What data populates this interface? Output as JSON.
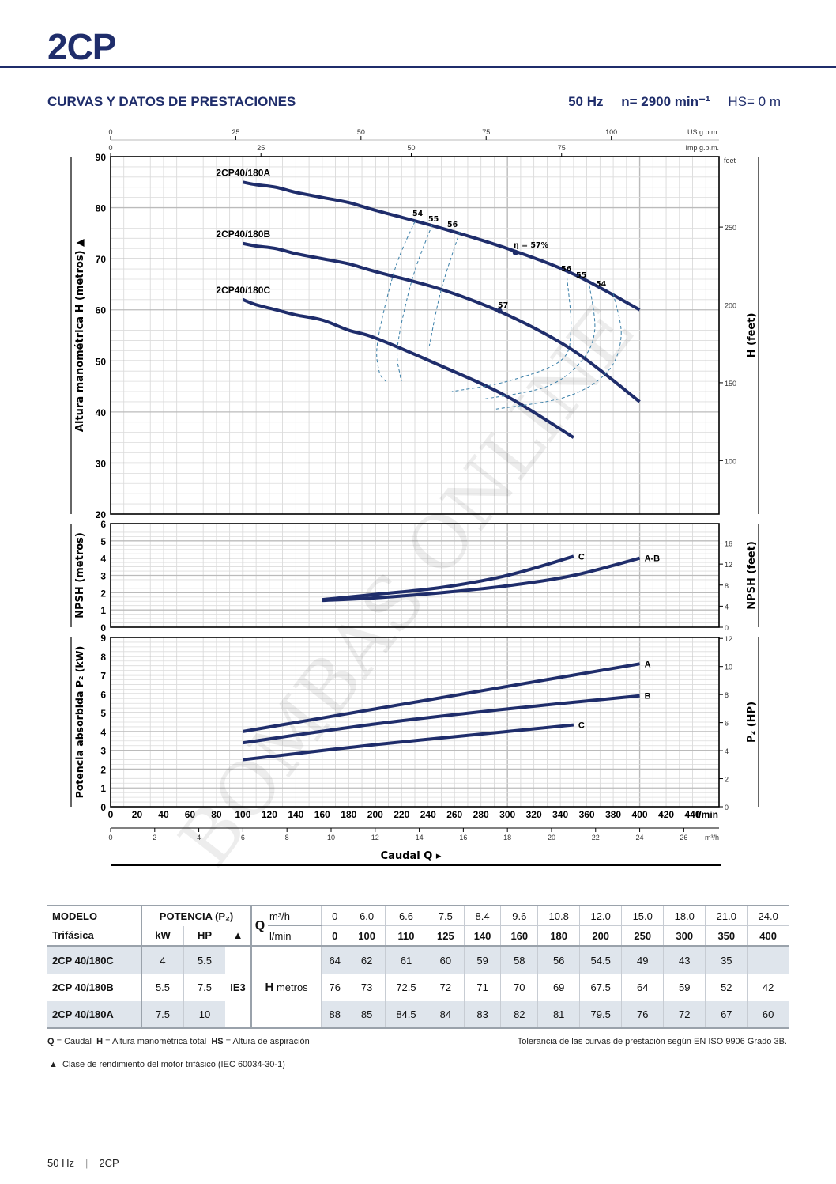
{
  "header": {
    "brand": "2CP",
    "section_title": "CURVAS Y DATOS DE PRESTACIONES",
    "frequency": "50 Hz",
    "speed": "n= 2900 min⁻¹",
    "hs": "HS= 0 m"
  },
  "watermark": "BOMBAS ONLINE",
  "colors": {
    "brand": "#1f2d6b",
    "curve": "#1f2d6b",
    "efficiency": "#3a7fa8",
    "row_shade": "#dfe5ec"
  },
  "chart_data": [
    {
      "type": "line",
      "title": "Altura manométrica",
      "ylabel": "Altura manométrica H (metros)",
      "ylabel_right": "H (feet)",
      "xlim": [
        0,
        460
      ],
      "ylim": [
        20,
        90
      ],
      "y_ticks": [
        "20",
        "30",
        "40",
        "50",
        "60",
        "70",
        "80",
        "90"
      ],
      "y_right_ticks": [
        "100",
        "150",
        "200",
        "250"
      ],
      "y_right_unit": "feet",
      "top_axis_us": {
        "unit": "US g.p.m.",
        "ticks": [
          "0",
          "25",
          "50",
          "75",
          "100"
        ]
      },
      "top_axis_imp": {
        "unit": "Imp g.p.m.",
        "ticks": [
          "0",
          "25",
          "50",
          "75"
        ]
      },
      "series": [
        {
          "name": "2CP40/180A",
          "x": [
            100,
            110,
            125,
            140,
            160,
            180,
            200,
            250,
            300,
            350,
            400
          ],
          "y": [
            85,
            84.5,
            84,
            83,
            82,
            81,
            79.5,
            76,
            72,
            67,
            60
          ]
        },
        {
          "name": "2CP40/180B",
          "x": [
            100,
            110,
            125,
            140,
            160,
            180,
            200,
            250,
            300,
            350,
            400
          ],
          "y": [
            73,
            72.5,
            72,
            71,
            70,
            69,
            67.5,
            64,
            59,
            52,
            42
          ]
        },
        {
          "name": "2CP40/180C",
          "x": [
            100,
            110,
            125,
            140,
            160,
            180,
            200,
            250,
            300,
            350
          ],
          "y": [
            62,
            61,
            60,
            59,
            58,
            56,
            54.5,
            49,
            43,
            35
          ]
        }
      ],
      "efficiency_labels": [
        "54",
        "55",
        "56",
        "η = 57%",
        "57",
        "56",
        "55",
        "54"
      ],
      "efficiency_contours": [
        {
          "label": "54",
          "points": [
            [
              230,
              77.3
            ],
            [
              215,
              68
            ],
            [
              202,
              54
            ],
            [
              203,
              48
            ],
            [
              208,
              46
            ]
          ]
        },
        {
          "label": "55",
          "points": [
            [
              243,
              76.6
            ],
            [
              228,
              66
            ],
            [
              217,
              53
            ],
            [
              219,
              47
            ],
            [
              220,
              46
            ]
          ]
        },
        {
          "label": "56",
          "points": [
            [
              264,
              75.3
            ],
            [
              250,
              64
            ],
            [
              241,
              53
            ]
          ]
        },
        {
          "label": "56",
          "points": [
            [
              345,
              66.4
            ],
            [
              348,
              56
            ],
            [
              340,
              50
            ],
            [
              300,
              46
            ],
            [
              258,
              44
            ]
          ]
        },
        {
          "label": "55",
          "points": [
            [
              362,
              64.8
            ],
            [
              366,
              56
            ],
            [
              356,
              50
            ],
            [
              330,
              45
            ],
            [
              282,
              42.5
            ]
          ]
        },
        {
          "label": "54",
          "points": [
            [
              380,
              63.2
            ],
            [
              386,
              55
            ],
            [
              376,
              48
            ],
            [
              345,
              43
            ],
            [
              290,
              40.5
            ]
          ]
        }
      ],
      "efficiency_points": [
        {
          "series": "2CP40/180A",
          "x": 306,
          "y": 71.2
        },
        {
          "series": "2CP40/180B",
          "x": 294,
          "y": 59.8
        }
      ]
    },
    {
      "type": "line",
      "title": "NPSH",
      "ylabel": "NPSH (metros)",
      "ylabel_right": "NPSH (feet)",
      "xlim": [
        0,
        460
      ],
      "ylim": [
        0,
        6
      ],
      "y_ticks": [
        "0",
        "1",
        "2",
        "3",
        "4",
        "5",
        "6"
      ],
      "y_right_ticks": [
        "0",
        "4",
        "8",
        "12",
        "16"
      ],
      "series": [
        {
          "name": "C",
          "x": [
            160,
            200,
            250,
            300,
            350
          ],
          "y": [
            1.6,
            1.9,
            2.3,
            3.0,
            4.1
          ]
        },
        {
          "name": "A-B",
          "x": [
            160,
            200,
            250,
            300,
            350,
            400
          ],
          "y": [
            1.55,
            1.7,
            2.0,
            2.4,
            3.0,
            4.0
          ]
        }
      ]
    },
    {
      "type": "line",
      "title": "Potencia absorbida",
      "ylabel": "Potencia absorbida P₂ (kW)",
      "ylabel_right": "P₂ (HP)",
      "xlim": [
        0,
        460
      ],
      "ylim": [
        0,
        9
      ],
      "y_ticks": [
        "0",
        "1",
        "2",
        "3",
        "4",
        "5",
        "6",
        "7",
        "8",
        "9"
      ],
      "y_right_ticks": [
        "0",
        "2",
        "4",
        "6",
        "8",
        "10",
        "12"
      ],
      "xlabel": "Caudal Q",
      "x_ticks": [
        "0",
        "20",
        "40",
        "60",
        "80",
        "100",
        "120",
        "140",
        "160",
        "180",
        "200",
        "220",
        "240",
        "260",
        "280",
        "300",
        "320",
        "340",
        "360",
        "380",
        "400",
        "420",
        "440"
      ],
      "x_unit": "l/min",
      "x2_ticks": [
        "0",
        "2",
        "4",
        "6",
        "8",
        "10",
        "12",
        "14",
        "16",
        "18",
        "20",
        "22",
        "24",
        "26"
      ],
      "x2_unit": "m³/h",
      "series": [
        {
          "name": "A",
          "x": [
            100,
            200,
            300,
            400
          ],
          "y": [
            4.0,
            5.2,
            6.4,
            7.6
          ]
        },
        {
          "name": "B",
          "x": [
            100,
            200,
            300,
            400
          ],
          "y": [
            3.4,
            4.4,
            5.2,
            5.9
          ]
        },
        {
          "name": "C",
          "x": [
            100,
            200,
            300,
            350
          ],
          "y": [
            2.5,
            3.3,
            4.0,
            4.35
          ]
        }
      ]
    }
  ],
  "table": {
    "h_modelo": "MODELO",
    "h_trifasica": "Trifásica",
    "h_potencia": "POTENCIA (P₂)",
    "h_kw": "kW",
    "h_hp": "HP",
    "h_class_icon": "▲",
    "h_q": "Q",
    "h_m3h": "m³/h",
    "h_lmin": "l/min",
    "m3h": [
      "0",
      "6.0",
      "6.6",
      "7.5",
      "8.4",
      "9.6",
      "10.8",
      "12.0",
      "15.0",
      "18.0",
      "21.0",
      "24.0"
    ],
    "lmin": [
      "0",
      "100",
      "110",
      "125",
      "140",
      "160",
      "180",
      "200",
      "250",
      "300",
      "350",
      "400"
    ],
    "ie_class": "IE3",
    "h_label": "H",
    "h_unit": "metros",
    "rows": [
      {
        "model": "2CP 40/180C",
        "kw": "4",
        "hp": "5.5",
        "h": [
          "64",
          "62",
          "61",
          "60",
          "59",
          "58",
          "56",
          "54.5",
          "49",
          "43",
          "35",
          ""
        ]
      },
      {
        "model": "2CP 40/180B",
        "kw": "5.5",
        "hp": "7.5",
        "h": [
          "76",
          "73",
          "72.5",
          "72",
          "71",
          "70",
          "69",
          "67.5",
          "64",
          "59",
          "52",
          "42"
        ]
      },
      {
        "model": "2CP 40/180A",
        "kw": "7.5",
        "hp": "10",
        "h": [
          "88",
          "85",
          "84.5",
          "84",
          "83",
          "82",
          "81",
          "79.5",
          "76",
          "72",
          "67",
          "60"
        ]
      }
    ]
  },
  "notes": {
    "legend_q": "Q",
    "legend_q_text": "= Caudal",
    "legend_h": "H",
    "legend_h_text": "= Altura manométrica total",
    "legend_hs": "HS",
    "legend_hs_text": "= Altura de aspiración",
    "tolerance": "Tolerancia de las curvas de prestación según EN ISO 9906 Grado 3B.",
    "class_icon": "▲",
    "class_text": "Clase de rendimiento del motor trifásico (IEC 60034-30-1)"
  },
  "footer": {
    "freq": "50 Hz",
    "series": "2CP"
  }
}
